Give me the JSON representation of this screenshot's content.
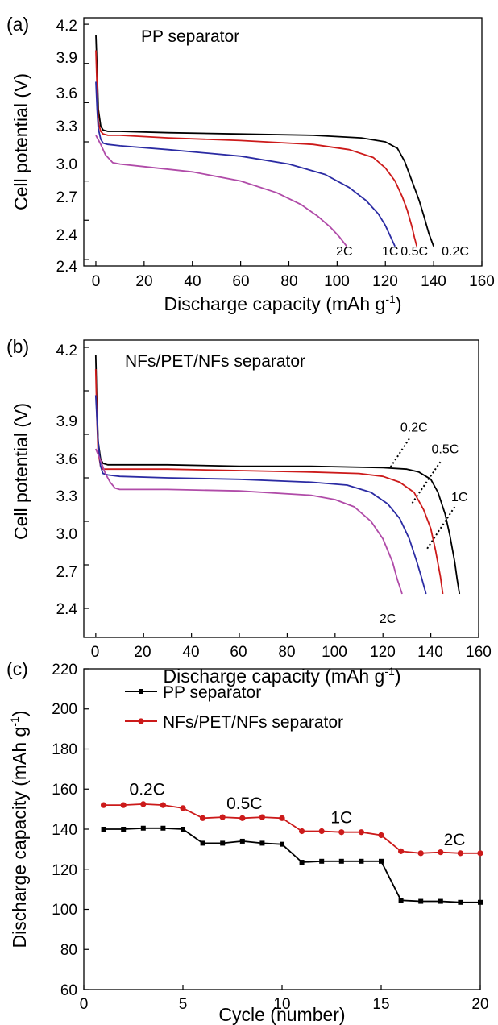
{
  "colors": {
    "black": "#000000",
    "red": "#cc1a1a",
    "blue": "#2b2ba3",
    "magenta": "#b04ba8"
  },
  "chart_data": [
    {
      "panel": "(a)",
      "type": "line",
      "title": "PP separator",
      "xlabel": "Discharge capacity (mAh g",
      "xlabel_sup": "-1",
      "xlabel_suffix": ")",
      "ylabel": "Cell potential (V)",
      "xlim": [
        -5,
        160
      ],
      "ylim": [
        2.35,
        4.25
      ],
      "xticks": [
        "0",
        "20",
        "40",
        "60",
        "80",
        "100",
        "120",
        "140",
        "160"
      ],
      "yticks": [
        "2.4",
        "2.7",
        "3.0",
        "3.3",
        "3.6",
        "3.9",
        "4.2"
      ],
      "grid": false,
      "series": [
        {
          "name": "0.2C",
          "color": "black",
          "x": [
            0,
            0.5,
            1,
            2,
            3,
            5,
            10,
            30,
            60,
            90,
            110,
            120,
            125,
            128,
            131,
            134,
            136,
            138,
            140
          ],
          "y": [
            4.12,
            3.85,
            3.55,
            3.42,
            3.39,
            3.38,
            3.38,
            3.37,
            3.36,
            3.35,
            3.33,
            3.3,
            3.25,
            3.15,
            3.0,
            2.85,
            2.73,
            2.6,
            2.5
          ]
        },
        {
          "name": "0.5C",
          "color": "red",
          "x": [
            0,
            0.5,
            1,
            2,
            3,
            5,
            10,
            30,
            60,
            90,
            105,
            115,
            120,
            124,
            127,
            129,
            131,
            132,
            133
          ],
          "y": [
            4.0,
            3.7,
            3.45,
            3.38,
            3.36,
            3.35,
            3.35,
            3.33,
            3.31,
            3.28,
            3.24,
            3.18,
            3.1,
            3.0,
            2.88,
            2.78,
            2.65,
            2.57,
            2.5
          ]
        },
        {
          "name": "1C",
          "color": "blue",
          "x": [
            0,
            0.5,
            1,
            2,
            3,
            5,
            10,
            30,
            60,
            80,
            95,
            105,
            112,
            117,
            120,
            122,
            124
          ],
          "y": [
            3.76,
            3.55,
            3.4,
            3.32,
            3.29,
            3.28,
            3.27,
            3.24,
            3.19,
            3.13,
            3.05,
            2.95,
            2.85,
            2.75,
            2.66,
            2.58,
            2.5
          ]
        },
        {
          "name": "2C",
          "color": "magenta",
          "x": [
            0,
            2,
            4,
            7,
            10,
            20,
            40,
            60,
            75,
            85,
            92,
            97,
            101,
            104
          ],
          "y": [
            3.35,
            3.28,
            3.2,
            3.14,
            3.13,
            3.11,
            3.07,
            3.0,
            2.91,
            2.82,
            2.73,
            2.65,
            2.57,
            2.5
          ]
        }
      ],
      "labels": [
        {
          "text": "2C",
          "x": 103,
          "y": 2.43
        },
        {
          "text": "1C",
          "x": 122,
          "y": 2.43
        },
        {
          "text": "0.5C",
          "x": 132,
          "y": 2.43
        },
        {
          "text": "0.2C",
          "x": 149,
          "y": 2.43
        }
      ]
    },
    {
      "panel": "(b)",
      "type": "line",
      "title": "NFs/PET/NFs separator",
      "xlabel": "Discharge capacity (mAh g",
      "xlabel_sup": "-1",
      "xlabel_suffix": ")",
      "ylabel": "Cell potential (V)",
      "xlim": [
        -5,
        160
      ],
      "ylim": [
        2.2,
        4.25
      ],
      "xticks": [
        "0",
        "20",
        "40",
        "60",
        "80",
        "100",
        "120",
        "140",
        "160"
      ],
      "yticks": [
        "2.4",
        "2.7",
        "3.0",
        "3.3",
        "3.6",
        "3.9",
        "4.2"
      ],
      "grid": false,
      "series": [
        {
          "name": "0.2C",
          "color": "black",
          "x": [
            0,
            0.5,
            1,
            2,
            3,
            5,
            10,
            30,
            60,
            90,
            120,
            130,
            135,
            140,
            143,
            146,
            148,
            150,
            151,
            152
          ],
          "y": [
            4.15,
            3.8,
            3.55,
            3.43,
            3.4,
            3.39,
            3.39,
            3.39,
            3.38,
            3.38,
            3.37,
            3.36,
            3.34,
            3.29,
            3.2,
            3.05,
            2.9,
            2.72,
            2.6,
            2.5
          ]
        },
        {
          "name": "0.5C",
          "color": "red",
          "x": [
            0,
            0.5,
            1,
            2,
            3,
            5,
            10,
            30,
            60,
            90,
            110,
            120,
            127,
            133,
            137,
            140,
            142,
            144,
            145
          ],
          "y": [
            4.05,
            3.7,
            3.48,
            3.38,
            3.36,
            3.36,
            3.36,
            3.36,
            3.35,
            3.34,
            3.33,
            3.31,
            3.27,
            3.2,
            3.08,
            2.95,
            2.8,
            2.62,
            2.5
          ]
        },
        {
          "name": "1C",
          "color": "blue",
          "x": [
            0,
            1,
            2,
            3,
            5,
            10,
            30,
            60,
            90,
            105,
            115,
            122,
            127,
            131,
            134,
            136,
            138
          ],
          "y": [
            3.87,
            3.55,
            3.38,
            3.33,
            3.32,
            3.31,
            3.3,
            3.29,
            3.27,
            3.25,
            3.2,
            3.12,
            3.02,
            2.88,
            2.73,
            2.62,
            2.5
          ]
        },
        {
          "name": "2C",
          "color": "magenta",
          "x": [
            0,
            2,
            4,
            6,
            8,
            10,
            30,
            60,
            90,
            100,
            108,
            115,
            120,
            124,
            126,
            128
          ],
          "y": [
            3.5,
            3.42,
            3.33,
            3.27,
            3.23,
            3.22,
            3.22,
            3.21,
            3.18,
            3.15,
            3.1,
            3.0,
            2.88,
            2.72,
            2.6,
            2.5
          ]
        }
      ],
      "labels": [
        {
          "text": "0.2C",
          "x": 133,
          "y": 3.62
        },
        {
          "text": "0.5C",
          "x": 146,
          "y": 3.47
        },
        {
          "text": "1C",
          "x": 152,
          "y": 3.14
        },
        {
          "text": "2C",
          "x": 122,
          "y": 2.3
        }
      ],
      "leaders": [
        {
          "x1": 131,
          "y1": 3.57,
          "x2": 123,
          "y2": 3.37
        },
        {
          "x1": 144,
          "y1": 3.41,
          "x2": 132,
          "y2": 3.12
        },
        {
          "x1": 150,
          "y1": 3.1,
          "x2": 138,
          "y2": 2.8
        }
      ]
    },
    {
      "panel": "(c)",
      "type": "line",
      "title": "",
      "xlabel": "Cycle (number)",
      "ylabel": "Discharge capacity (mAh g",
      "ylabel_sup": "-1",
      "ylabel_suffix": ")",
      "xlim": [
        0,
        20
      ],
      "ylim": [
        60,
        220
      ],
      "xticks": [
        "0",
        "5",
        "10",
        "15",
        "20"
      ],
      "yticks": [
        "60",
        "80",
        "100",
        "120",
        "140",
        "160",
        "180",
        "200",
        "220"
      ],
      "grid": false,
      "legend_position": "top-left",
      "x": [
        1,
        2,
        3,
        4,
        5,
        6,
        7,
        8,
        9,
        10,
        11,
        12,
        13,
        14,
        15,
        16,
        17,
        18,
        19,
        20
      ],
      "series": [
        {
          "name": "PP separator",
          "color": "black",
          "marker": "square",
          "values": [
            140,
            140,
            140.5,
            140.5,
            140,
            133,
            133,
            134,
            133,
            132.5,
            123.5,
            124,
            124,
            124,
            124,
            104.5,
            104,
            104,
            103.5,
            103.5
          ]
        },
        {
          "name": "NFs/PET/NFs separator",
          "color": "red",
          "marker": "circle",
          "values": [
            152,
            152,
            152.5,
            152,
            150.5,
            145.5,
            146,
            145.5,
            146,
            145.5,
            139,
            139,
            138.5,
            138.5,
            137,
            129,
            128,
            128.5,
            128,
            128
          ]
        }
      ],
      "labels": [
        {
          "text": "0.2C",
          "x": 3.2,
          "y": 157
        },
        {
          "text": "0.5C",
          "x": 8.1,
          "y": 150
        },
        {
          "text": "1C",
          "x": 13,
          "y": 143
        },
        {
          "text": "2C",
          "x": 18.7,
          "y": 132
        }
      ]
    }
  ]
}
